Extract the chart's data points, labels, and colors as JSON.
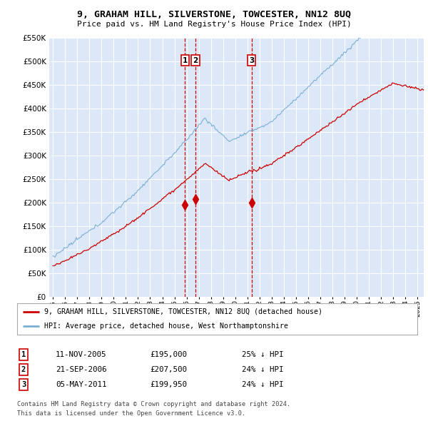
{
  "title": "9, GRAHAM HILL, SILVERSTONE, TOWCESTER, NN12 8UQ",
  "subtitle": "Price paid vs. HM Land Registry's House Price Index (HPI)",
  "bg_color": "#dce8f8",
  "grid_color": "#ffffff",
  "red_line_color": "#cc0000",
  "blue_line_color": "#7bafd4",
  "legend_label_red": "9, GRAHAM HILL, SILVERSTONE, TOWCESTER, NN12 8UQ (detached house)",
  "legend_label_blue": "HPI: Average price, detached house, West Northamptonshire",
  "transactions": [
    {
      "id": 1,
      "date": "11-NOV-2005",
      "price": "£195,000",
      "pct": "25% ↓ HPI",
      "year": 2005.876
    },
    {
      "id": 2,
      "date": "21-SEP-2006",
      "price": "£207,500",
      "pct": "24% ↓ HPI",
      "year": 2006.722
    },
    {
      "id": 3,
      "date": "05-MAY-2011",
      "price": "£199,950",
      "pct": "24% ↓ HPI",
      "year": 2011.342
    }
  ],
  "footnote1": "Contains HM Land Registry data © Crown copyright and database right 2024.",
  "footnote2": "This data is licensed under the Open Government Licence v3.0.",
  "ylim": [
    0,
    550000
  ],
  "yticks": [
    0,
    50000,
    100000,
    150000,
    200000,
    250000,
    300000,
    350000,
    400000,
    450000,
    500000,
    550000
  ],
  "xmin": 1994.7,
  "xmax": 2025.5
}
